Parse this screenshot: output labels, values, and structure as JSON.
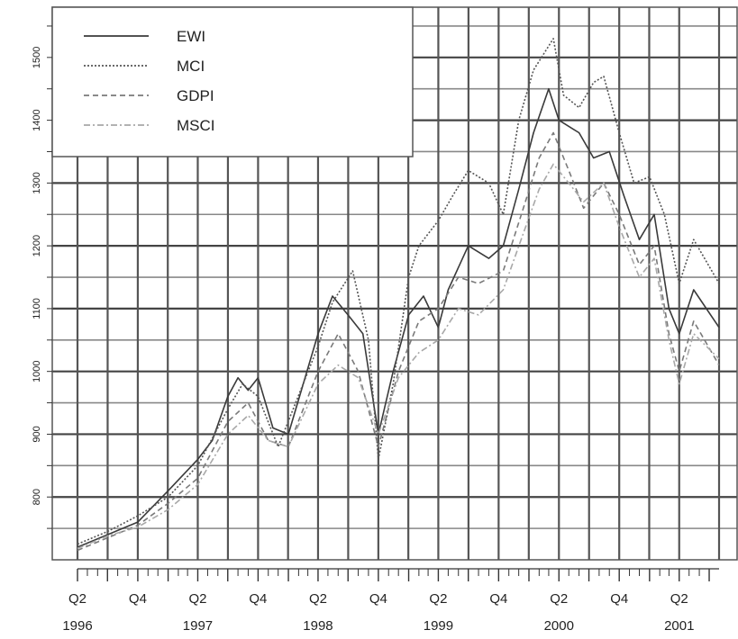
{
  "chart_data": {
    "type": "line",
    "title": "",
    "xlabel": "",
    "ylabel": "",
    "x_range": [
      "1996-04-01",
      "2001-07-31"
    ],
    "ylim": [
      700,
      1580
    ],
    "y_ticks": [
      800,
      900,
      1000,
      1100,
      1200,
      1300,
      1400,
      1500
    ],
    "y_tick_labels": [
      "800",
      "900",
      "1000",
      "1100",
      "1200",
      "1300",
      "1400",
      "1500"
    ],
    "x_ticks": [
      {
        "date": "1996-04-01",
        "label": "Q2"
      },
      {
        "date": "1996-10-01",
        "label": "Q4"
      },
      {
        "date": "1997-04-01",
        "label": "Q2"
      },
      {
        "date": "1997-10-01",
        "label": "Q4"
      },
      {
        "date": "1998-04-01",
        "label": "Q2"
      },
      {
        "date": "1998-10-01",
        "label": "Q4"
      },
      {
        "date": "1999-04-01",
        "label": "Q2"
      },
      {
        "date": "1999-10-01",
        "label": "Q4"
      },
      {
        "date": "2000-04-01",
        "label": "Q2"
      },
      {
        "date": "2000-10-01",
        "label": "Q4"
      },
      {
        "date": "2001-04-01",
        "label": "Q2"
      }
    ],
    "year_labels": [
      {
        "date": "1996-04-01",
        "label": "1996"
      },
      {
        "date": "1997-04-01",
        "label": "1997"
      },
      {
        "date": "1998-04-01",
        "label": "1998"
      },
      {
        "date": "1999-04-01",
        "label": "1999"
      },
      {
        "date": "2000-04-01",
        "label": "2000"
      },
      {
        "date": "2001-04-01",
        "label": "2001"
      }
    ],
    "grid": true,
    "legend": "top-left",
    "series": [
      {
        "name": "EWI",
        "color": "#3a3a3a",
        "style": "solid",
        "points": [
          [
            "1996-04-01",
            720
          ],
          [
            "1996-07-01",
            740
          ],
          [
            "1996-10-01",
            760
          ],
          [
            "1997-01-01",
            810
          ],
          [
            "1997-04-01",
            860
          ],
          [
            "1997-05-15",
            890
          ],
          [
            "1997-07-01",
            960
          ],
          [
            "1997-08-01",
            990
          ],
          [
            "1997-09-01",
            970
          ],
          [
            "1997-10-01",
            990
          ],
          [
            "1997-11-15",
            910
          ],
          [
            "1998-01-01",
            900
          ],
          [
            "1998-04-01",
            1060
          ],
          [
            "1998-05-15",
            1120
          ],
          [
            "1998-07-01",
            1090
          ],
          [
            "1998-08-15",
            1060
          ],
          [
            "1998-10-01",
            900
          ],
          [
            "1998-11-15",
            1000
          ],
          [
            "1999-01-01",
            1090
          ],
          [
            "1999-02-15",
            1120
          ],
          [
            "1999-04-01",
            1070
          ],
          [
            "1999-05-01",
            1130
          ],
          [
            "1999-07-01",
            1200
          ],
          [
            "1999-09-01",
            1180
          ],
          [
            "1999-10-15",
            1200
          ],
          [
            "1999-12-01",
            1290
          ],
          [
            "2000-01-15",
            1380
          ],
          [
            "2000-03-01",
            1450
          ],
          [
            "2000-04-01",
            1400
          ],
          [
            "2000-06-01",
            1380
          ],
          [
            "2000-07-15",
            1340
          ],
          [
            "2000-09-01",
            1350
          ],
          [
            "2000-10-15",
            1280
          ],
          [
            "2000-12-01",
            1210
          ],
          [
            "2001-01-15",
            1250
          ],
          [
            "2001-03-01",
            1100
          ],
          [
            "2001-04-01",
            1060
          ],
          [
            "2001-05-15",
            1130
          ],
          [
            "2001-07-31",
            1070
          ]
        ]
      },
      {
        "name": "MCI",
        "color": "#555555",
        "style": "dotted",
        "points": [
          [
            "1996-04-01",
            725
          ],
          [
            "1996-07-01",
            745
          ],
          [
            "1996-10-01",
            770
          ],
          [
            "1997-01-01",
            800
          ],
          [
            "1997-04-01",
            850
          ],
          [
            "1997-07-01",
            940
          ],
          [
            "1997-08-15",
            980
          ],
          [
            "1997-10-01",
            960
          ],
          [
            "1997-12-01",
            880
          ],
          [
            "1998-04-01",
            1040
          ],
          [
            "1998-05-15",
            1110
          ],
          [
            "1998-07-15",
            1160
          ],
          [
            "1998-09-01",
            1050
          ],
          [
            "1998-10-01",
            860
          ],
          [
            "1998-11-15",
            980
          ],
          [
            "1999-01-01",
            1150
          ],
          [
            "1999-02-01",
            1200
          ],
          [
            "1999-04-01",
            1240
          ],
          [
            "1999-05-15",
            1280
          ],
          [
            "1999-07-01",
            1320
          ],
          [
            "1999-09-01",
            1300
          ],
          [
            "1999-10-15",
            1250
          ],
          [
            "1999-12-01",
            1400
          ],
          [
            "2000-01-15",
            1480
          ],
          [
            "2000-03-15",
            1530
          ],
          [
            "2000-04-15",
            1440
          ],
          [
            "2000-06-01",
            1420
          ],
          [
            "2000-07-15",
            1460
          ],
          [
            "2000-08-15",
            1470
          ],
          [
            "2000-10-01",
            1380
          ],
          [
            "2000-11-15",
            1300
          ],
          [
            "2001-01-01",
            1310
          ],
          [
            "2001-02-15",
            1250
          ],
          [
            "2001-04-01",
            1140
          ],
          [
            "2001-05-15",
            1210
          ],
          [
            "2001-07-31",
            1140
          ]
        ]
      },
      {
        "name": "GDPI",
        "color": "#7a7a7a",
        "style": "dashed",
        "points": [
          [
            "1996-04-01",
            715
          ],
          [
            "1996-07-01",
            735
          ],
          [
            "1996-10-01",
            755
          ],
          [
            "1997-01-01",
            790
          ],
          [
            "1997-04-01",
            830
          ],
          [
            "1997-07-01",
            920
          ],
          [
            "1997-09-01",
            950
          ],
          [
            "1997-11-01",
            890
          ],
          [
            "1998-01-01",
            880
          ],
          [
            "1998-04-01",
            1000
          ],
          [
            "1998-06-01",
            1060
          ],
          [
            "1998-08-01",
            1000
          ],
          [
            "1998-10-01",
            880
          ],
          [
            "1998-12-01",
            1000
          ],
          [
            "1999-02-01",
            1080
          ],
          [
            "1999-04-01",
            1100
          ],
          [
            "1999-06-01",
            1150
          ],
          [
            "1999-08-01",
            1140
          ],
          [
            "1999-10-15",
            1160
          ],
          [
            "1999-12-15",
            1260
          ],
          [
            "2000-02-01",
            1340
          ],
          [
            "2000-03-15",
            1380
          ],
          [
            "2000-05-01",
            1320
          ],
          [
            "2000-06-15",
            1260
          ],
          [
            "2000-08-15",
            1300
          ],
          [
            "2000-10-01",
            1250
          ],
          [
            "2000-12-01",
            1170
          ],
          [
            "2001-01-15",
            1200
          ],
          [
            "2001-03-01",
            1060
          ],
          [
            "2001-04-01",
            1000
          ],
          [
            "2001-05-15",
            1080
          ],
          [
            "2001-07-31",
            1010
          ]
        ]
      },
      {
        "name": "MSCI",
        "color": "#a8a8a8",
        "style": "dashdot",
        "points": [
          [
            "1996-04-01",
            718
          ],
          [
            "1996-07-01",
            738
          ],
          [
            "1996-10-01",
            752
          ],
          [
            "1997-01-01",
            780
          ],
          [
            "1997-04-01",
            820
          ],
          [
            "1997-07-01",
            900
          ],
          [
            "1997-09-01",
            930
          ],
          [
            "1997-11-01",
            890
          ],
          [
            "1998-01-01",
            880
          ],
          [
            "1998-04-01",
            980
          ],
          [
            "1998-06-01",
            1010
          ],
          [
            "1998-08-01",
            990
          ],
          [
            "1998-10-01",
            900
          ],
          [
            "1998-12-01",
            990
          ],
          [
            "1999-02-01",
            1030
          ],
          [
            "1999-04-01",
            1050
          ],
          [
            "1999-06-01",
            1100
          ],
          [
            "1999-08-01",
            1090
          ],
          [
            "1999-10-15",
            1130
          ],
          [
            "1999-12-15",
            1220
          ],
          [
            "2000-02-01",
            1290
          ],
          [
            "2000-03-15",
            1330
          ],
          [
            "2000-05-01",
            1300
          ],
          [
            "2000-06-15",
            1270
          ],
          [
            "2000-08-15",
            1300
          ],
          [
            "2000-10-01",
            1230
          ],
          [
            "2000-12-01",
            1150
          ],
          [
            "2001-01-15",
            1180
          ],
          [
            "2001-03-01",
            1050
          ],
          [
            "2001-04-01",
            980
          ],
          [
            "2001-05-15",
            1060
          ],
          [
            "2001-07-31",
            1020
          ]
        ]
      }
    ]
  }
}
